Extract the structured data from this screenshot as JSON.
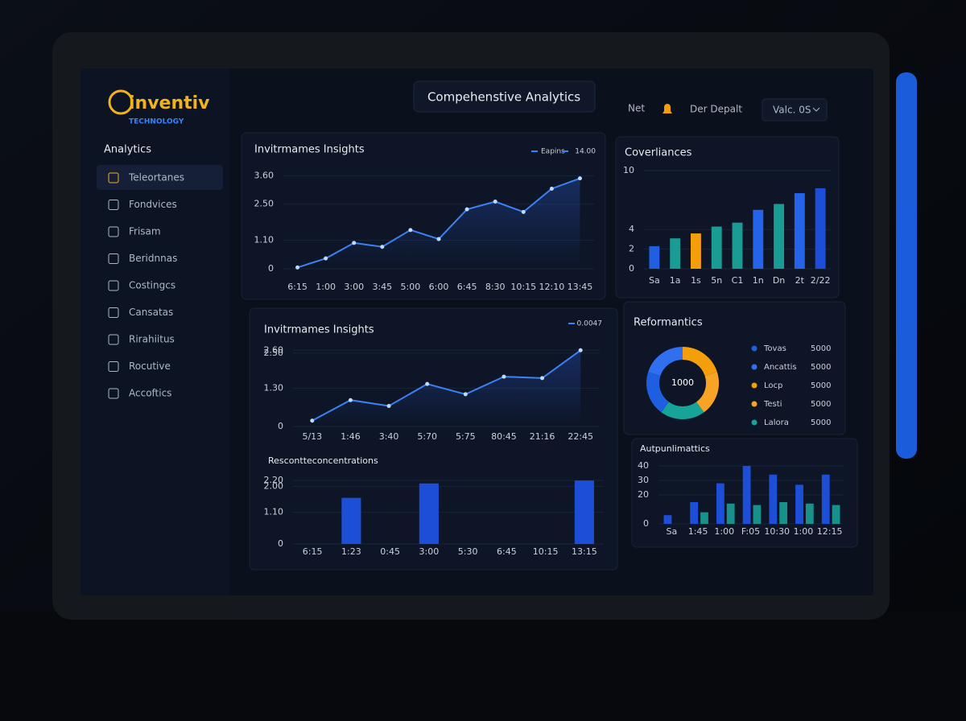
{
  "logo": {
    "name": "inventiv",
    "tagline": "TECHNOLOGY"
  },
  "sidebar": {
    "title": "Analytics",
    "items": [
      "Teleortanes",
      "Fondvices",
      "Frisam",
      "Beridnnas",
      "Costingcs",
      "Cansatas",
      "Rirahiitus",
      "Rocutive",
      "Accoftics"
    ]
  },
  "header": {
    "title": "Compehenstive Analytics",
    "link": "Net",
    "user": "Der Depalt",
    "select": "Valc. 0S"
  },
  "chart_data": [
    {
      "type": "line",
      "title": "Invitrmames Insights",
      "legend_value": "14.00",
      "categories": [
        "6:15",
        "1:00",
        "3:00",
        "3:45",
        "5:00",
        "6:00",
        "6:45",
        "8:30",
        "10:15",
        "12:10",
        "13:45"
      ],
      "series": [
        {
          "name": "Eapins",
          "color": "#3b82f6",
          "values": [
            0.05,
            0.4,
            1.0,
            0.85,
            1.5,
            1.15,
            2.3,
            2.6,
            2.2,
            3.1,
            3.5
          ]
        }
      ],
      "ylim": [
        0,
        3.8
      ],
      "yticks": [
        0,
        {
          "value": 1.1,
          "label": "1.10"
        },
        {
          "value": 2.5,
          "label": "2.50"
        },
        {
          "value": 3.6,
          "label": "3.60"
        }
      ],
      "grid": true
    },
    {
      "type": "bar",
      "title": "Coverliances",
      "categories": [
        "Sa",
        "1a",
        "1s",
        "5n",
        "C1",
        "1n",
        "Dn",
        "2t",
        "2/22"
      ],
      "series": [
        {
          "colors": [
            "#1f5fe0",
            "#1a9c94",
            "#f59e0b",
            "#1a9c94",
            "#1a9c94",
            "#2563eb",
            "#1a9c94",
            "#2563eb",
            "#1d4ed8"
          ],
          "values": [
            2.3,
            3.1,
            3.6,
            4.3,
            4.7,
            6.0,
            6.6,
            7.7,
            8.2
          ]
        }
      ],
      "ylim": [
        0,
        10
      ],
      "yticks": [
        0,
        2,
        4,
        10
      ],
      "grid": true
    },
    {
      "type": "line",
      "title": "Invitrmames Insights",
      "legend_value": "0.0047",
      "categories": [
        "5/13",
        "1:46",
        "3:40",
        "5:70",
        "5:75",
        "80:45",
        "21:16",
        "22:45"
      ],
      "series": [
        {
          "color": "#3b82f6",
          "values": [
            0.2,
            0.9,
            0.7,
            1.45,
            1.1,
            1.7,
            1.65,
            2.6
          ]
        }
      ],
      "ylim": [
        0,
        2.8
      ],
      "yticks": [
        0,
        {
          "value": 1.3,
          "label": "1.30"
        },
        {
          "value": 2.6,
          "label": "2.60"
        },
        {
          "value": 2.5,
          "label": "2.50"
        }
      ],
      "grid": true
    },
    {
      "type": "bar",
      "title": "Rescontteconcentrations",
      "categories": [
        "6:15",
        "1:23",
        "0:45",
        "3:00",
        "5:30",
        "6:45",
        "10:15",
        "13:15"
      ],
      "series": [
        {
          "color": "#1d4ed8",
          "values": [
            null,
            1.6,
            null,
            2.1,
            null,
            null,
            null,
            2.2
          ]
        }
      ],
      "ylim": [
        0,
        2.4
      ],
      "yticks": [
        0,
        {
          "value": 1.1,
          "label": "1.10"
        },
        {
          "value": 2,
          "label": "2.00"
        },
        {
          "value": 2.2,
          "label": "2.20"
        }
      ],
      "grid": true
    },
    {
      "type": "pie",
      "title": "Reformantics",
      "center_value": 1000,
      "categories": [
        "Tovas",
        "Ancattis",
        "Locp",
        "Testi",
        "Lalora"
      ],
      "values": [
        5000,
        5000,
        5000,
        5000,
        5000
      ],
      "colors": [
        "#1d5fe0",
        "#2f6ff0",
        "#f59e0b",
        "#f7a325",
        "#17a398"
      ]
    },
    {
      "type": "bar",
      "title": "Autpunlimattics",
      "categories": [
        "Sa",
        "1:45",
        "1:00",
        "F:05",
        "10:30",
        "1:00",
        "12:15"
      ],
      "series": [
        {
          "color": "#1d4ed8",
          "values": [
            6,
            15,
            28,
            40,
            34,
            27,
            34
          ]
        },
        {
          "color": "#17918a",
          "values": [
            null,
            8,
            14,
            13,
            15,
            14,
            13
          ]
        }
      ],
      "ylim": [
        0,
        45
      ],
      "yticks": [
        0,
        20,
        30,
        40
      ],
      "grid": true
    }
  ]
}
